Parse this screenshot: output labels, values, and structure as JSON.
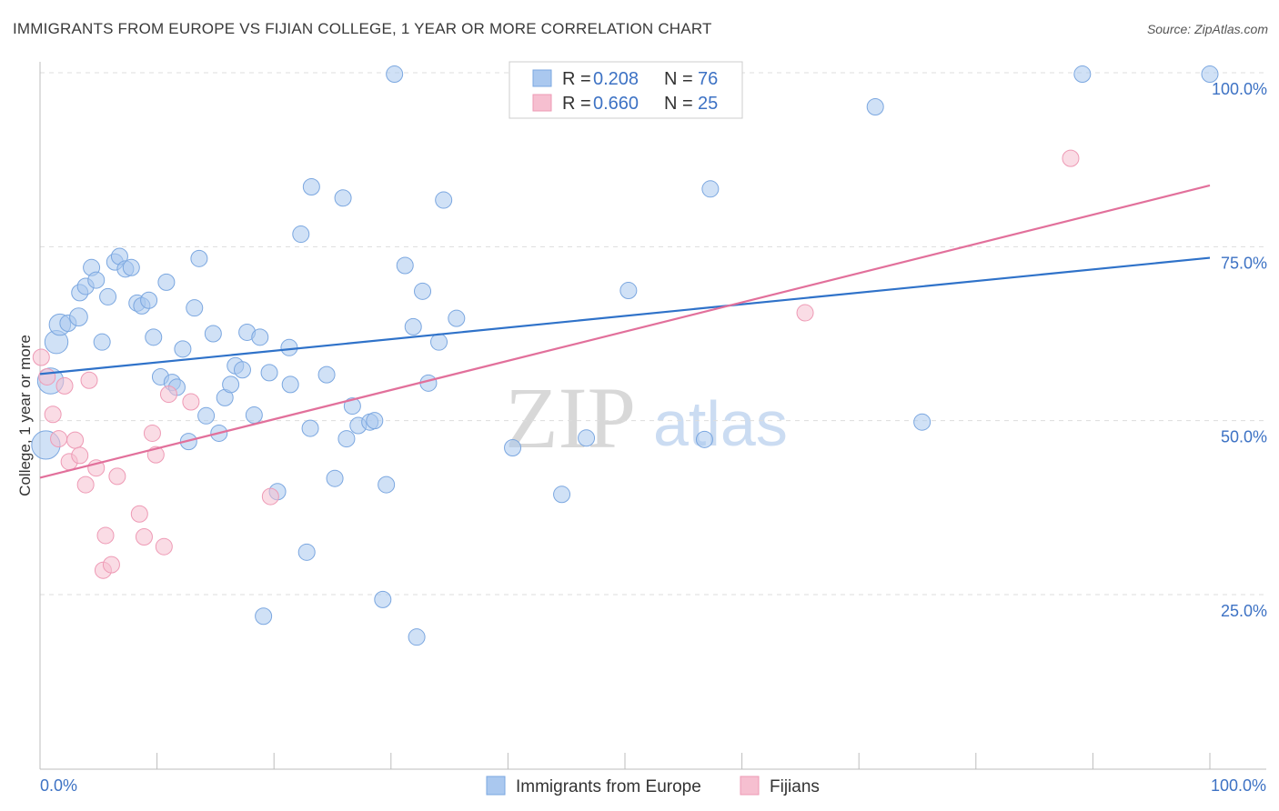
{
  "header": {
    "title": "IMMIGRANTS FROM EUROPE VS FIJIAN COLLEGE, 1 YEAR OR MORE CORRELATION CHART",
    "source": "Source: ZipAtlas.com"
  },
  "watermark": {
    "zip": "ZIP",
    "atlas": "atlas"
  },
  "legend_top": {
    "rows": [
      {
        "r_label": "R = ",
        "r_value": "0.208",
        "n_label": "N = ",
        "n_value": "76"
      },
      {
        "r_label": "R = ",
        "r_value": "0.660",
        "n_label": "N = ",
        "n_value": "25"
      }
    ]
  },
  "legend_bottom": {
    "items": [
      {
        "label": "Immigrants from Europe"
      },
      {
        "label": "Fijians"
      }
    ]
  },
  "colors": {
    "blue_fill": "#aac8ef",
    "blue_stroke": "#7ba7e0",
    "blue_line": "#2f72c9",
    "pink_fill": "#f6bfd0",
    "pink_stroke": "#ee9ab5",
    "pink_line": "#e2709b",
    "tick_text": "#3d72c4",
    "grid": "#dddddd"
  },
  "chart_data": {
    "type": "scatter",
    "title": "IMMIGRANTS FROM EUROPE VS FIJIAN COLLEGE, 1 YEAR OR MORE CORRELATION CHART",
    "xlabel": "",
    "ylabel": "College, 1 year or more",
    "xlim": [
      0,
      100
    ],
    "ylim": [
      0,
      105
    ],
    "x_tick_labels": [
      "0.0%",
      "100.0%"
    ],
    "y_ticks": [
      25,
      50,
      75,
      100
    ],
    "y_tick_labels": [
      "25.0%",
      "50.0%",
      "75.0%",
      "100.0%"
    ],
    "grid": true,
    "legend_position": "top-center",
    "series": [
      {
        "name": "Immigrants from Europe",
        "color": "#aac8ef",
        "trend": {
          "x": [
            0,
            100
          ],
          "y": [
            56.7,
            73.4
          ]
        },
        "points": [
          {
            "x": 0.5,
            "y": 46.5,
            "s": 3
          },
          {
            "x": 0.9,
            "y": 55.7,
            "s": 2.5
          },
          {
            "x": 1.4,
            "y": 61.3,
            "s": 2
          },
          {
            "x": 1.7,
            "y": 63.8,
            "s": 1.7
          },
          {
            "x": 2.4,
            "y": 64.0,
            "s": 1
          },
          {
            "x": 3.4,
            "y": 68.4,
            "s": 1
          },
          {
            "x": 3.3,
            "y": 64.9,
            "s": 1.2
          },
          {
            "x": 3.9,
            "y": 69.3,
            "s": 1
          },
          {
            "x": 4.4,
            "y": 72.0,
            "s": 1
          },
          {
            "x": 4.8,
            "y": 70.2,
            "s": 1
          },
          {
            "x": 5.3,
            "y": 61.3,
            "s": 1
          },
          {
            "x": 5.8,
            "y": 67.8,
            "s": 1
          },
          {
            "x": 6.4,
            "y": 72.8,
            "s": 1
          },
          {
            "x": 6.8,
            "y": 73.6,
            "s": 1
          },
          {
            "x": 7.3,
            "y": 71.8,
            "s": 1
          },
          {
            "x": 7.8,
            "y": 72.0,
            "s": 1
          },
          {
            "x": 8.3,
            "y": 66.9,
            "s": 1
          },
          {
            "x": 8.7,
            "y": 66.5,
            "s": 1
          },
          {
            "x": 9.3,
            "y": 67.3,
            "s": 1
          },
          {
            "x": 9.7,
            "y": 62.0,
            "s": 1
          },
          {
            "x": 10.3,
            "y": 56.3,
            "s": 1
          },
          {
            "x": 10.8,
            "y": 69.9,
            "s": 1
          },
          {
            "x": 11.3,
            "y": 55.5,
            "s": 1
          },
          {
            "x": 11.7,
            "y": 54.8,
            "s": 1
          },
          {
            "x": 12.2,
            "y": 60.3,
            "s": 1
          },
          {
            "x": 12.7,
            "y": 47.0,
            "s": 1
          },
          {
            "x": 13.2,
            "y": 66.2,
            "s": 1
          },
          {
            "x": 13.6,
            "y": 73.3,
            "s": 1
          },
          {
            "x": 14.2,
            "y": 50.7,
            "s": 1
          },
          {
            "x": 14.8,
            "y": 62.5,
            "s": 1
          },
          {
            "x": 15.3,
            "y": 48.2,
            "s": 1
          },
          {
            "x": 15.8,
            "y": 53.3,
            "s": 1
          },
          {
            "x": 16.3,
            "y": 55.2,
            "s": 1
          },
          {
            "x": 16.7,
            "y": 57.9,
            "s": 1
          },
          {
            "x": 17.3,
            "y": 57.3,
            "s": 1
          },
          {
            "x": 17.7,
            "y": 62.7,
            "s": 1
          },
          {
            "x": 18.3,
            "y": 50.8,
            "s": 1
          },
          {
            "x": 18.8,
            "y": 62.0,
            "s": 1
          },
          {
            "x": 19.1,
            "y": 21.9,
            "s": 1
          },
          {
            "x": 19.6,
            "y": 56.9,
            "s": 1
          },
          {
            "x": 20.3,
            "y": 39.8,
            "s": 1
          },
          {
            "x": 21.3,
            "y": 60.5,
            "s": 1
          },
          {
            "x": 21.4,
            "y": 55.2,
            "s": 1
          },
          {
            "x": 22.3,
            "y": 76.8,
            "s": 1
          },
          {
            "x": 22.8,
            "y": 31.1,
            "s": 1
          },
          {
            "x": 23.1,
            "y": 48.9,
            "s": 1
          },
          {
            "x": 23.2,
            "y": 83.6,
            "s": 1
          },
          {
            "x": 24.5,
            "y": 56.6,
            "s": 1
          },
          {
            "x": 25.2,
            "y": 41.7,
            "s": 1
          },
          {
            "x": 25.9,
            "y": 82.0,
            "s": 1
          },
          {
            "x": 26.2,
            "y": 47.4,
            "s": 1
          },
          {
            "x": 26.7,
            "y": 52.1,
            "s": 1
          },
          {
            "x": 27.2,
            "y": 49.3,
            "s": 1
          },
          {
            "x": 28.2,
            "y": 49.8,
            "s": 1
          },
          {
            "x": 28.6,
            "y": 50.0,
            "s": 1
          },
          {
            "x": 29.3,
            "y": 24.3,
            "s": 1
          },
          {
            "x": 29.6,
            "y": 40.8,
            "s": 1
          },
          {
            "x": 30.3,
            "y": 99.8,
            "s": 1
          },
          {
            "x": 31.2,
            "y": 72.3,
            "s": 1
          },
          {
            "x": 31.9,
            "y": 63.5,
            "s": 1
          },
          {
            "x": 32.2,
            "y": 18.9,
            "s": 1
          },
          {
            "x": 32.7,
            "y": 68.6,
            "s": 1
          },
          {
            "x": 33.2,
            "y": 55.4,
            "s": 1
          },
          {
            "x": 34.1,
            "y": 61.3,
            "s": 1
          },
          {
            "x": 34.5,
            "y": 81.7,
            "s": 1
          },
          {
            "x": 35.6,
            "y": 64.7,
            "s": 1
          },
          {
            "x": 40.4,
            "y": 46.1,
            "s": 1
          },
          {
            "x": 44.6,
            "y": 39.4,
            "s": 1
          },
          {
            "x": 46.7,
            "y": 47.5,
            "s": 1
          },
          {
            "x": 50.3,
            "y": 68.7,
            "s": 1
          },
          {
            "x": 56.8,
            "y": 47.3,
            "s": 1
          },
          {
            "x": 57.3,
            "y": 83.3,
            "s": 1
          },
          {
            "x": 71.4,
            "y": 95.1,
            "s": 1
          },
          {
            "x": 75.4,
            "y": 49.8,
            "s": 1
          },
          {
            "x": 89.1,
            "y": 99.8,
            "s": 1
          },
          {
            "x": 100.0,
            "y": 99.8,
            "s": 1
          }
        ]
      },
      {
        "name": "Fijians",
        "color": "#f6bfd0",
        "trend": {
          "x": [
            0,
            100
          ],
          "y": [
            41.8,
            83.8
          ]
        },
        "points": [
          {
            "x": 0.1,
            "y": 59.1,
            "s": 1
          },
          {
            "x": 0.6,
            "y": 56.3,
            "s": 1
          },
          {
            "x": 1.1,
            "y": 50.9,
            "s": 1
          },
          {
            "x": 1.6,
            "y": 47.4,
            "s": 1
          },
          {
            "x": 2.1,
            "y": 55.0,
            "s": 1
          },
          {
            "x": 2.5,
            "y": 44.1,
            "s": 1
          },
          {
            "x": 3.0,
            "y": 47.2,
            "s": 1
          },
          {
            "x": 3.4,
            "y": 45.0,
            "s": 1
          },
          {
            "x": 3.9,
            "y": 40.8,
            "s": 1
          },
          {
            "x": 4.2,
            "y": 55.8,
            "s": 1
          },
          {
            "x": 4.8,
            "y": 43.2,
            "s": 1
          },
          {
            "x": 5.4,
            "y": 28.5,
            "s": 1
          },
          {
            "x": 5.6,
            "y": 33.5,
            "s": 1
          },
          {
            "x": 6.1,
            "y": 29.3,
            "s": 1
          },
          {
            "x": 6.6,
            "y": 42.0,
            "s": 1
          },
          {
            "x": 8.5,
            "y": 36.6,
            "s": 1
          },
          {
            "x": 8.9,
            "y": 33.3,
            "s": 1
          },
          {
            "x": 9.6,
            "y": 48.2,
            "s": 1
          },
          {
            "x": 9.9,
            "y": 45.1,
            "s": 1
          },
          {
            "x": 10.6,
            "y": 31.9,
            "s": 1
          },
          {
            "x": 11.0,
            "y": 53.8,
            "s": 1
          },
          {
            "x": 12.9,
            "y": 52.7,
            "s": 1
          },
          {
            "x": 19.7,
            "y": 39.1,
            "s": 1
          },
          {
            "x": 65.4,
            "y": 65.5,
            "s": 1
          },
          {
            "x": 88.1,
            "y": 87.7,
            "s": 1
          }
        ]
      }
    ]
  }
}
